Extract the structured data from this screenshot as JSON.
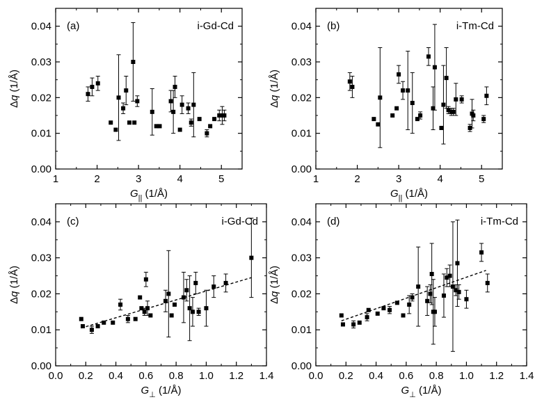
{
  "chart_data": [
    {
      "type": "scatter",
      "panel": "(a)",
      "title": "i-Gd-Cd",
      "xlabel": {
        "sym": "G",
        "sub": "||",
        "unit": " (1/Å)"
      },
      "ylabel": {
        "sym": "Δq",
        "unit": " (1/Å)"
      },
      "xlim": [
        1,
        5.5
      ],
      "ylim": [
        0,
        0.045
      ],
      "xticks": [
        1,
        2,
        3,
        4,
        5
      ],
      "xtick_labels": [
        "1",
        "2",
        "3",
        "4",
        "5"
      ],
      "yticks": [
        0,
        0.01,
        0.02,
        0.03,
        0.04
      ],
      "ytick_labels": [
        "0.00",
        "0.01",
        "0.02",
        "0.03",
        "0.04"
      ],
      "points": [
        {
          "x": 1.78,
          "y": 0.021,
          "err": 0.002
        },
        {
          "x": 1.88,
          "y": 0.023,
          "err": 0.0025
        },
        {
          "x": 2.02,
          "y": 0.024,
          "err": 0.002
        },
        {
          "x": 2.33,
          "y": 0.013
        },
        {
          "x": 2.45,
          "y": 0.011
        },
        {
          "x": 2.52,
          "y": 0.02,
          "err": 0.012
        },
        {
          "x": 2.63,
          "y": 0.017,
          "err": 0.0015
        },
        {
          "x": 2.7,
          "y": 0.022,
          "err": 0.004
        },
        {
          "x": 2.78,
          "y": 0.013
        },
        {
          "x": 2.87,
          "y": 0.03,
          "err": 0.011
        },
        {
          "x": 2.9,
          "y": 0.013
        },
        {
          "x": 2.97,
          "y": 0.019,
          "err": 0.0015
        },
        {
          "x": 3.33,
          "y": 0.016,
          "err": 0.0065
        },
        {
          "x": 3.43,
          "y": 0.012
        },
        {
          "x": 3.51,
          "y": 0.012
        },
        {
          "x": 3.78,
          "y": 0.019,
          "err": 0.003
        },
        {
          "x": 3.84,
          "y": 0.016,
          "err": 0.006
        },
        {
          "x": 3.88,
          "y": 0.023,
          "err": 0.003
        },
        {
          "x": 4.0,
          "y": 0.011
        },
        {
          "x": 4.05,
          "y": 0.018,
          "err": 0.0025
        },
        {
          "x": 4.2,
          "y": 0.017,
          "err": 0.0015
        },
        {
          "x": 4.27,
          "y": 0.013,
          "err": 0.001
        },
        {
          "x": 4.33,
          "y": 0.018,
          "err": 0.009
        },
        {
          "x": 4.47,
          "y": 0.014
        },
        {
          "x": 4.65,
          "y": 0.01,
          "err": 0.001
        },
        {
          "x": 4.73,
          "y": 0.012
        },
        {
          "x": 4.83,
          "y": 0.014
        },
        {
          "x": 4.95,
          "y": 0.015,
          "err": 0.0015
        },
        {
          "x": 5.02,
          "y": 0.015,
          "err": 0.0025
        },
        {
          "x": 5.07,
          "y": 0.015,
          "err": 0.0015
        }
      ]
    },
    {
      "type": "scatter",
      "panel": "(b)",
      "title": "i-Tm-Cd",
      "xlabel": {
        "sym": "G",
        "sub": "||",
        "unit": " (1/Å)"
      },
      "ylabel": {
        "sym": "Δq",
        "unit": " (1/Å)"
      },
      "xlim": [
        1,
        5.5
      ],
      "ylim": [
        0,
        0.045
      ],
      "xticks": [
        1,
        2,
        3,
        4,
        5
      ],
      "xtick_labels": [
        "1",
        "2",
        "3",
        "4",
        "5"
      ],
      "yticks": [
        0,
        0.01,
        0.02,
        0.03,
        0.04
      ],
      "ytick_labels": [
        "0.00",
        "0.01",
        "0.02",
        "0.03",
        "0.04"
      ],
      "points": [
        {
          "x": 1.82,
          "y": 0.0245,
          "err": 0.0025
        },
        {
          "x": 1.88,
          "y": 0.023,
          "err": 0.003
        },
        {
          "x": 2.4,
          "y": 0.014
        },
        {
          "x": 2.5,
          "y": 0.0125
        },
        {
          "x": 2.55,
          "y": 0.02,
          "err": 0.014
        },
        {
          "x": 2.85,
          "y": 0.015
        },
        {
          "x": 2.95,
          "y": 0.017
        },
        {
          "x": 3.0,
          "y": 0.0265,
          "err": 0.0025
        },
        {
          "x": 3.1,
          "y": 0.022,
          "err": 0.0025
        },
        {
          "x": 3.22,
          "y": 0.022,
          "err": 0.011
        },
        {
          "x": 3.33,
          "y": 0.0185,
          "err": 0.0085
        },
        {
          "x": 3.45,
          "y": 0.014
        },
        {
          "x": 3.52,
          "y": 0.015,
          "err": 0.001
        },
        {
          "x": 3.72,
          "y": 0.0315,
          "err": 0.0025
        },
        {
          "x": 3.83,
          "y": 0.017,
          "err": 0.006
        },
        {
          "x": 3.87,
          "y": 0.0285,
          "err": 0.012
        },
        {
          "x": 4.03,
          "y": 0.0115
        },
        {
          "x": 4.08,
          "y": 0.018,
          "err": 0.011
        },
        {
          "x": 4.15,
          "y": 0.0255,
          "err": 0.0085
        },
        {
          "x": 4.2,
          "y": 0.0165,
          "err": 0.001
        },
        {
          "x": 4.27,
          "y": 0.016,
          "err": 0.001
        },
        {
          "x": 4.32,
          "y": 0.016,
          "err": 0.001
        },
        {
          "x": 4.38,
          "y": 0.0195,
          "err": 0.0045
        },
        {
          "x": 4.52,
          "y": 0.0195,
          "err": 0.001
        },
        {
          "x": 4.72,
          "y": 0.0115,
          "err": 0.001
        },
        {
          "x": 4.77,
          "y": 0.0155,
          "err": 0.004
        },
        {
          "x": 4.8,
          "y": 0.015,
          "err": 0.0015
        },
        {
          "x": 5.05,
          "y": 0.014,
          "err": 0.001
        },
        {
          "x": 5.12,
          "y": 0.0205,
          "err": 0.0025
        }
      ]
    },
    {
      "type": "scatter",
      "panel": "(c)",
      "title": "i-Gd-Cd",
      "xlabel": {
        "sym": "G",
        "sub": "⊥",
        "unit": " (1/Å)"
      },
      "ylabel": {
        "sym": "Δq",
        "unit": " (1/Å)"
      },
      "xlim": [
        0,
        1.4
      ],
      "ylim": [
        0,
        0.045
      ],
      "xticks": [
        0,
        0.2,
        0.4,
        0.6,
        0.8,
        1.0,
        1.2,
        1.4
      ],
      "xtick_labels": [
        "0.0",
        "0.2",
        "0.4",
        "0.6",
        "0.8",
        "1.0",
        "1.2",
        "1.4"
      ],
      "yticks": [
        0,
        0.01,
        0.02,
        0.03,
        0.04
      ],
      "ytick_labels": [
        "0.00",
        "0.01",
        "0.02",
        "0.03",
        "0.04"
      ],
      "fit_line": {
        "x": [
          0.17,
          1.3
        ],
        "y": [
          0.0105,
          0.0245
        ]
      },
      "points": [
        {
          "x": 0.17,
          "y": 0.013
        },
        {
          "x": 0.18,
          "y": 0.011
        },
        {
          "x": 0.24,
          "y": 0.01,
          "err": 0.001
        },
        {
          "x": 0.28,
          "y": 0.011
        },
        {
          "x": 0.32,
          "y": 0.012
        },
        {
          "x": 0.38,
          "y": 0.012
        },
        {
          "x": 0.43,
          "y": 0.017,
          "err": 0.0015
        },
        {
          "x": 0.48,
          "y": 0.013,
          "err": 0.001
        },
        {
          "x": 0.53,
          "y": 0.013
        },
        {
          "x": 0.56,
          "y": 0.019
        },
        {
          "x": 0.57,
          "y": 0.016
        },
        {
          "x": 0.59,
          "y": 0.015,
          "err": 0.001
        },
        {
          "x": 0.6,
          "y": 0.024,
          "err": 0.002
        },
        {
          "x": 0.61,
          "y": 0.016,
          "err": 0.002
        },
        {
          "x": 0.63,
          "y": 0.014
        },
        {
          "x": 0.73,
          "y": 0.018,
          "err": 0.003
        },
        {
          "x": 0.75,
          "y": 0.02,
          "err": 0.012
        },
        {
          "x": 0.77,
          "y": 0.014
        },
        {
          "x": 0.79,
          "y": 0.017
        },
        {
          "x": 0.85,
          "y": 0.019,
          "err": 0.007
        },
        {
          "x": 0.87,
          "y": 0.021,
          "err": 0.003
        },
        {
          "x": 0.89,
          "y": 0.016,
          "err": 0.009
        },
        {
          "x": 0.91,
          "y": 0.015,
          "err": 0.004
        },
        {
          "x": 0.93,
          "y": 0.023,
          "err": 0.003
        },
        {
          "x": 0.95,
          "y": 0.015,
          "err": 0.001
        },
        {
          "x": 1.0,
          "y": 0.016,
          "err": 0.005
        },
        {
          "x": 1.05,
          "y": 0.022,
          "err": 0.003
        },
        {
          "x": 1.13,
          "y": 0.023,
          "err": 0.0025
        },
        {
          "x": 1.3,
          "y": 0.03,
          "err": 0.011
        }
      ]
    },
    {
      "type": "scatter",
      "panel": "(d)",
      "title": "i-Tm-Cd",
      "xlabel": {
        "sym": "G",
        "sub": "⊥",
        "unit": " (1/Å)"
      },
      "ylabel": {
        "sym": "Δq",
        "unit": " (1/Å)"
      },
      "xlim": [
        0,
        1.4
      ],
      "ylim": [
        0,
        0.045
      ],
      "xticks": [
        0,
        0.2,
        0.4,
        0.6,
        0.8,
        1.0,
        1.2,
        1.4
      ],
      "xtick_labels": [
        "0.0",
        "0.2",
        "0.4",
        "0.6",
        "0.8",
        "1.0",
        "1.2",
        "1.4"
      ],
      "yticks": [
        0,
        0.01,
        0.02,
        0.03,
        0.04
      ],
      "ytick_labels": [
        "0.00",
        "0.01",
        "0.02",
        "0.03",
        "0.04"
      ],
      "fit_line": {
        "x": [
          0.17,
          1.13
        ],
        "y": [
          0.0125,
          0.0265
        ]
      },
      "points": [
        {
          "x": 0.17,
          "y": 0.014
        },
        {
          "x": 0.18,
          "y": 0.0115
        },
        {
          "x": 0.25,
          "y": 0.0115,
          "err": 0.001
        },
        {
          "x": 0.29,
          "y": 0.012
        },
        {
          "x": 0.34,
          "y": 0.0135,
          "err": 0.001
        },
        {
          "x": 0.35,
          "y": 0.0155
        },
        {
          "x": 0.41,
          "y": 0.0145
        },
        {
          "x": 0.45,
          "y": 0.016
        },
        {
          "x": 0.49,
          "y": 0.0155,
          "err": 0.001
        },
        {
          "x": 0.54,
          "y": 0.0175
        },
        {
          "x": 0.58,
          "y": 0.014
        },
        {
          "x": 0.62,
          "y": 0.017,
          "err": 0.0025
        },
        {
          "x": 0.64,
          "y": 0.019,
          "err": 0.001
        },
        {
          "x": 0.68,
          "y": 0.022,
          "err": 0.011
        },
        {
          "x": 0.74,
          "y": 0.018,
          "err": 0.004
        },
        {
          "x": 0.76,
          "y": 0.02,
          "err": 0.0025
        },
        {
          "x": 0.77,
          "y": 0.0255,
          "err": 0.0085
        },
        {
          "x": 0.78,
          "y": 0.015,
          "err": 0.009
        },
        {
          "x": 0.79,
          "y": 0.015,
          "err": 0.004
        },
        {
          "x": 0.85,
          "y": 0.0195,
          "err": 0.006
        },
        {
          "x": 0.87,
          "y": 0.0245,
          "err": 0.0025
        },
        {
          "x": 0.89,
          "y": 0.025,
          "err": 0.003
        },
        {
          "x": 0.91,
          "y": 0.022,
          "err": 0.018
        },
        {
          "x": 0.93,
          "y": 0.021,
          "err": 0.0015
        },
        {
          "x": 0.94,
          "y": 0.0285,
          "err": 0.012
        },
        {
          "x": 0.95,
          "y": 0.0205,
          "err": 0.002
        },
        {
          "x": 1.0,
          "y": 0.0185,
          "err": 0.0025
        },
        {
          "x": 1.1,
          "y": 0.0315,
          "err": 0.0025
        },
        {
          "x": 1.14,
          "y": 0.023,
          "err": 0.0025
        }
      ]
    }
  ]
}
